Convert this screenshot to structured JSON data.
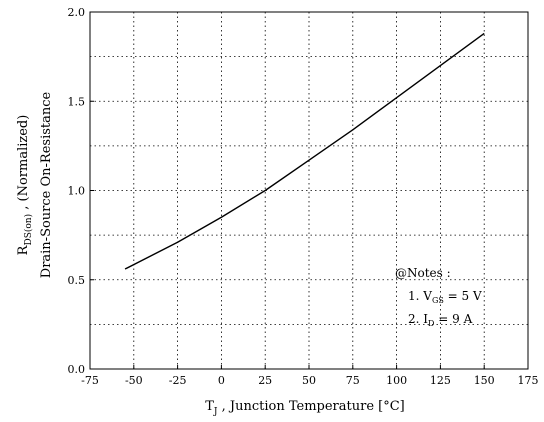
{
  "chart_data": {
    "type": "line",
    "title": "",
    "xlabel": "T_J , Junction Temperature [°C]",
    "ylabel_line1": "R_DS(on) , (Normalized)",
    "ylabel_line2": "Drain-Source On-Resistance",
    "xlim": [
      -75,
      175
    ],
    "ylim": [
      0.0,
      2.0
    ],
    "x_ticks": [
      -75,
      -50,
      -25,
      0,
      25,
      50,
      75,
      100,
      125,
      150,
      175
    ],
    "y_ticks": [
      0.0,
      0.5,
      1.0,
      1.5,
      2.0
    ],
    "y_tick_labels": [
      "0.0",
      "0.5",
      "1.0",
      "1.5",
      "2.0"
    ],
    "grid": true,
    "grid_style": "dotted",
    "series": [
      {
        "x": [
          -55,
          -25,
          0,
          25,
          50,
          75,
          100,
          125,
          150
        ],
        "y": [
          0.56,
          0.71,
          0.85,
          1.0,
          1.17,
          1.34,
          1.52,
          1.7,
          1.88
        ]
      }
    ],
    "annotation": {
      "header": "@Notes :",
      "lines": [
        "1. V_GS = 5 V",
        "2. I_D = 9 A"
      ]
    }
  }
}
